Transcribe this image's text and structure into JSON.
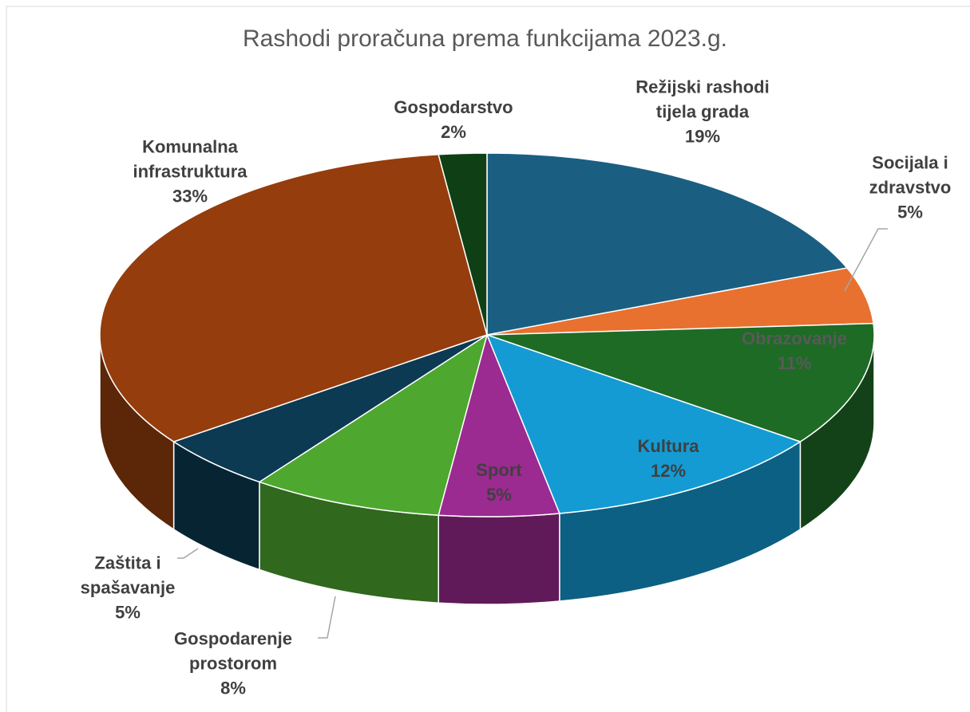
{
  "chart_data": {
    "type": "pie",
    "title": "Rashodi proračuna prema funkcijama 2023.g.",
    "categories": [
      "Režijski rashodi tijela grada",
      "Socijala i zdravstvo",
      "Obrazovanje",
      "Kultura",
      "Sport",
      "Gospodarenje prostorom",
      "Zaštita i spašavanje",
      "Komunalna infrastruktura",
      "Gospodarstvo"
    ],
    "values": [
      19,
      5,
      11,
      12,
      5,
      8,
      5,
      33,
      2
    ],
    "value_labels": [
      "19%",
      "5%",
      "11%",
      "12%",
      "5%",
      "8%",
      "5%",
      "33%",
      "2%"
    ],
    "colors": [
      "#1a5f82",
      "#e8712f",
      "#1e6b26",
      "#149bd4",
      "#9b2a91",
      "#4ea72e",
      "#0c3a52",
      "#953d0d",
      "#0f4015"
    ]
  }
}
